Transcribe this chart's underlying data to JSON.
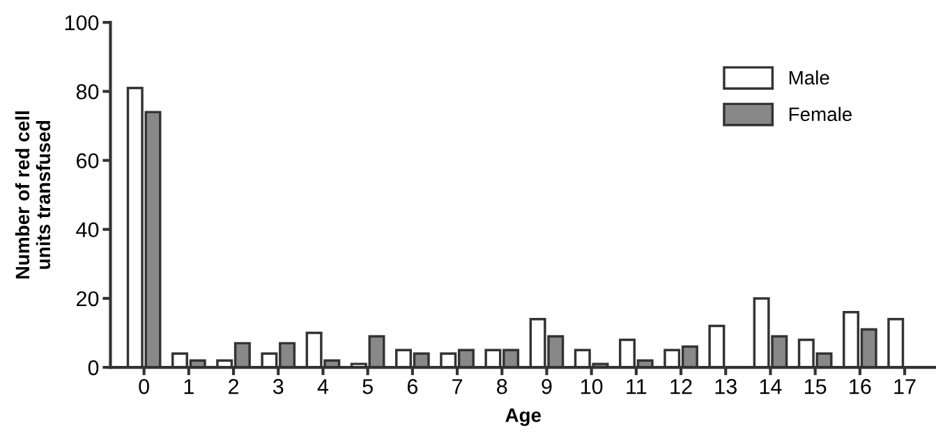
{
  "chart_data": {
    "type": "bar",
    "xlabel": "Age",
    "ylabel": "Number of red cell\nunits transfused",
    "categories": [
      "0",
      "1",
      "2",
      "3",
      "4",
      "5",
      "6",
      "7",
      "8",
      "9",
      "10",
      "11",
      "12",
      "13",
      "14",
      "15",
      "16",
      "17"
    ],
    "series": [
      {
        "name": "Male",
        "color": "#ffffff",
        "values": [
          81,
          4,
          2,
          4,
          10,
          1,
          5,
          4,
          5,
          14,
          5,
          8,
          5,
          12,
          20,
          8,
          16,
          14
        ]
      },
      {
        "name": "Female",
        "color": "#888888",
        "values": [
          74,
          2,
          7,
          7,
          2,
          9,
          4,
          5,
          5,
          9,
          1,
          2,
          6,
          null,
          9,
          4,
          11,
          null
        ]
      }
    ],
    "ylim": [
      0,
      100
    ],
    "yticks": [
      0,
      20,
      40,
      60,
      80,
      100
    ],
    "grid": false,
    "legend": "top right"
  }
}
